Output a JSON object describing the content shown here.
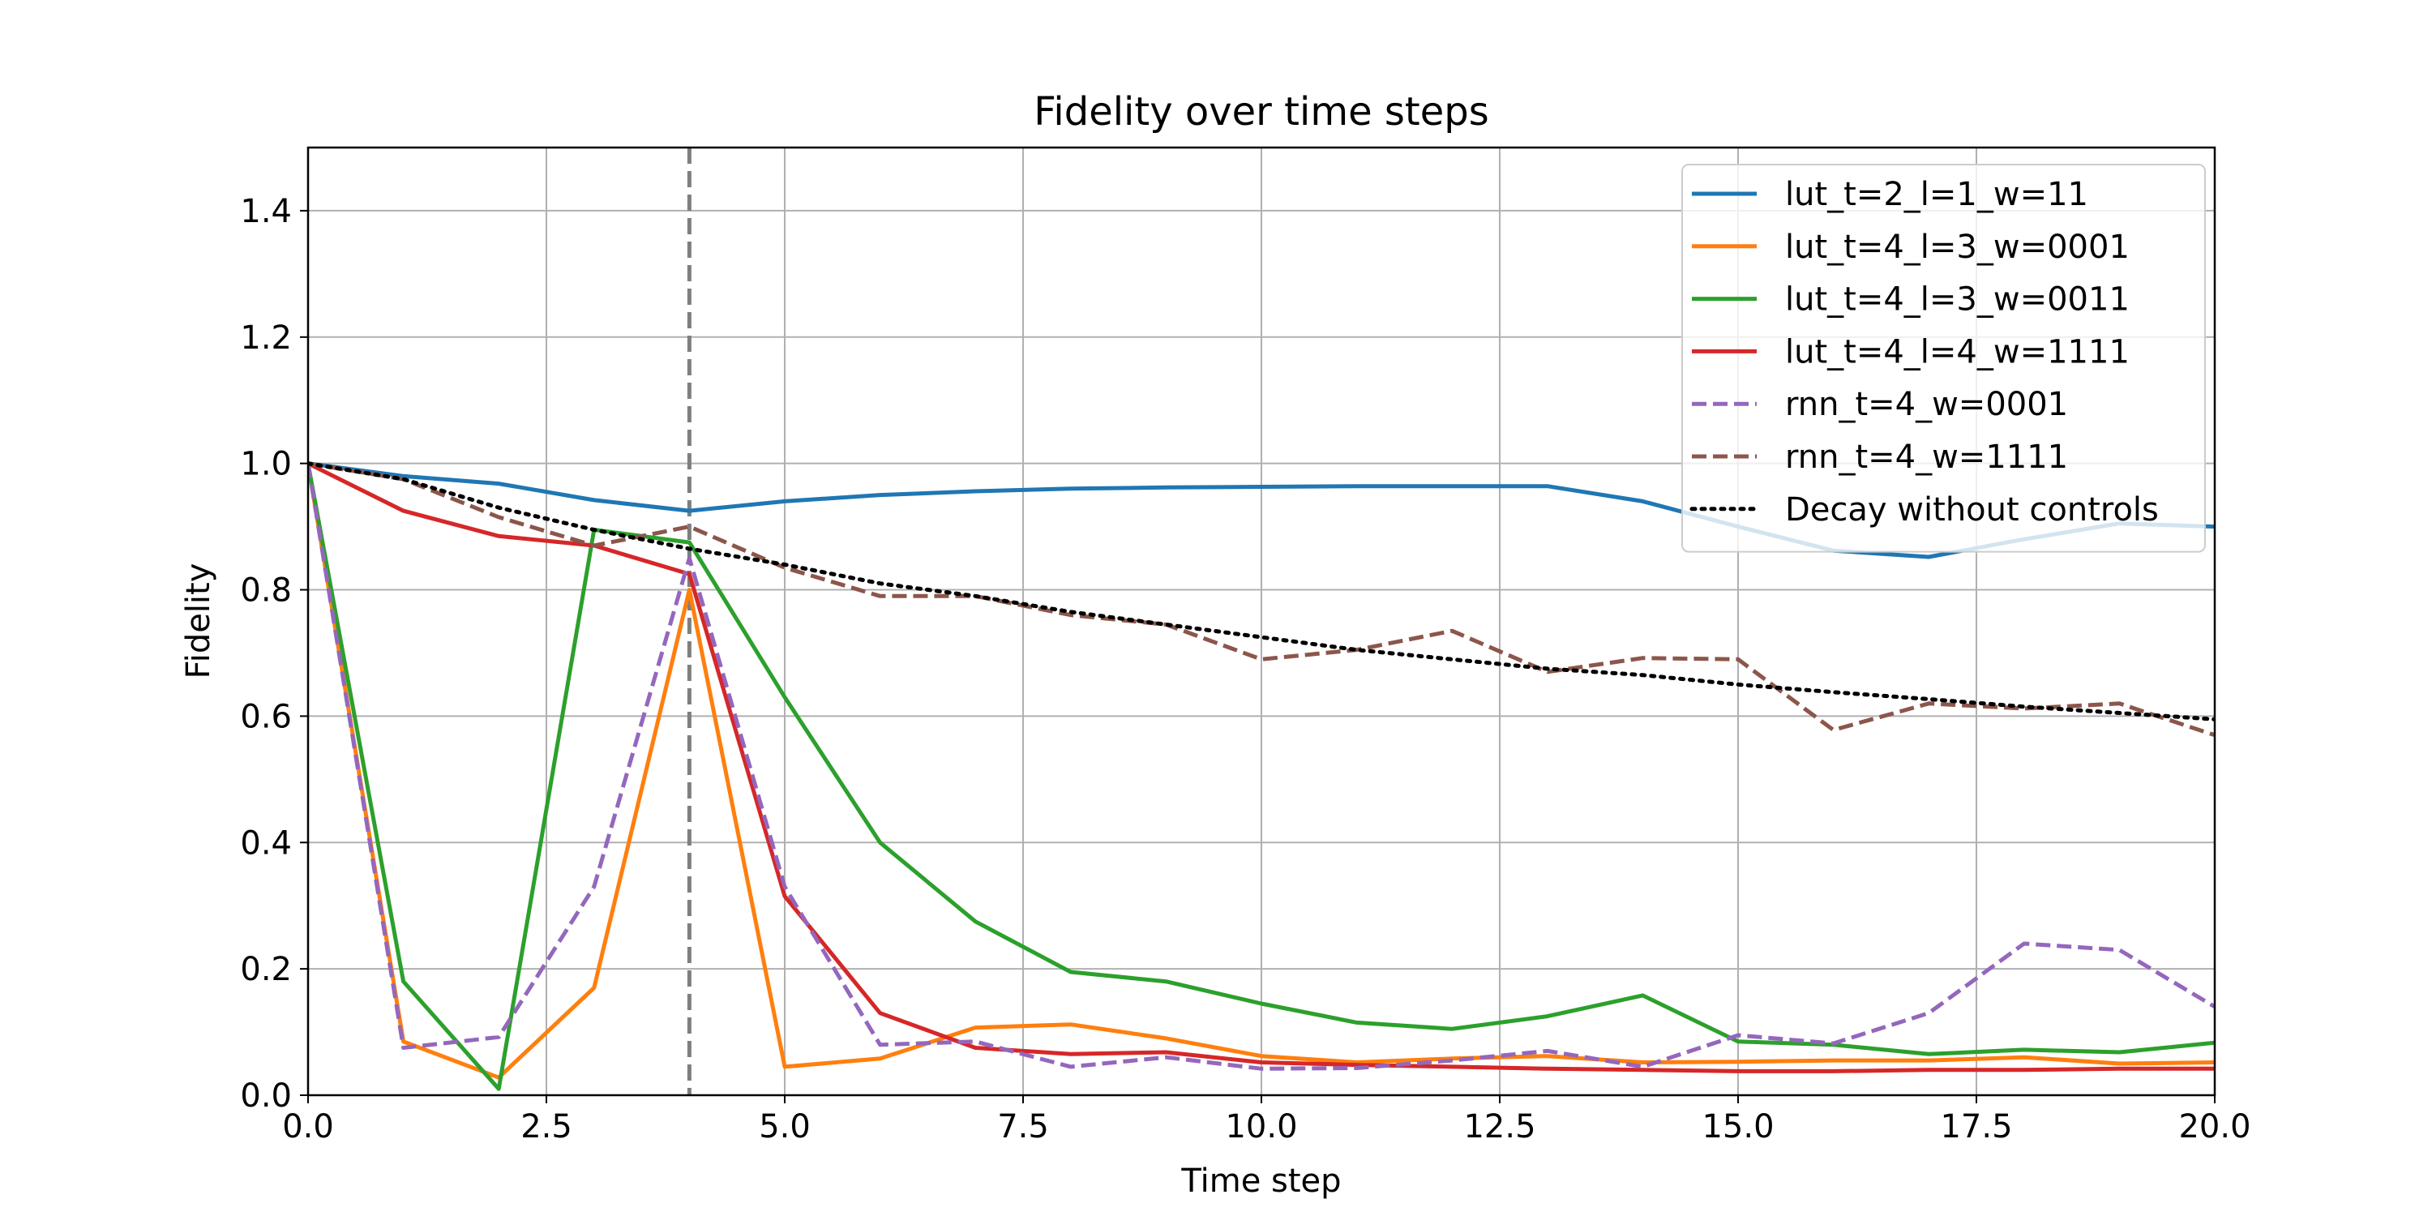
{
  "chart_data": {
    "type": "line",
    "title": "Fidelity over time steps",
    "xlabel": "Time step",
    "ylabel": "Fidelity",
    "xlim": [
      0,
      20
    ],
    "ylim": [
      0,
      1.5
    ],
    "xticks": [
      0,
      2.5,
      5,
      7.5,
      10,
      12.5,
      15,
      17.5,
      20
    ],
    "xtick_labels": [
      "0.0",
      "2.5",
      "5.0",
      "7.5",
      "10.0",
      "12.5",
      "15.0",
      "17.5",
      "20.0"
    ],
    "yticks": [
      0,
      0.2,
      0.4,
      0.6,
      0.8,
      1.0,
      1.2,
      1.4
    ],
    "ytick_labels": [
      "0.0",
      "0.2",
      "0.4",
      "0.6",
      "0.8",
      "1.0",
      "1.2",
      "1.4"
    ],
    "grid": true,
    "legend_position": "top-right",
    "vertical_marker": {
      "x": 4,
      "color": "#7f7f7f",
      "style": "dashed"
    },
    "x": [
      0,
      1,
      2,
      3,
      4,
      5,
      6,
      7,
      8,
      9,
      10,
      11,
      12,
      13,
      14,
      15,
      16,
      17,
      18,
      19,
      20
    ],
    "series": [
      {
        "name": "lut_t=2_l=1_w=11",
        "color": "#1f77b4",
        "style": "solid",
        "values": [
          1.0,
          0.98,
          0.968,
          0.942,
          0.925,
          0.94,
          0.95,
          0.956,
          0.96,
          0.962,
          0.963,
          0.964,
          0.964,
          0.964,
          0.94,
          0.9,
          0.862,
          0.852,
          0.88,
          0.905,
          0.9
        ]
      },
      {
        "name": "lut_t=4_l=3_w=0001",
        "color": "#ff7f0e",
        "style": "solid",
        "values": [
          1.0,
          0.085,
          0.028,
          0.17,
          0.8,
          0.045,
          0.058,
          0.107,
          0.112,
          0.09,
          0.062,
          0.052,
          0.058,
          0.062,
          0.052,
          0.053,
          0.055,
          0.055,
          0.06,
          0.05,
          0.052
        ]
      },
      {
        "name": "lut_t=4_l=3_w=0011",
        "color": "#2ca02c",
        "style": "solid",
        "values": [
          1.0,
          0.18,
          0.01,
          0.895,
          0.875,
          0.63,
          0.4,
          0.275,
          0.195,
          0.18,
          0.145,
          0.115,
          0.105,
          0.125,
          0.158,
          0.085,
          0.08,
          0.065,
          0.072,
          0.068,
          0.083
        ]
      },
      {
        "name": "lut_t=4_l=4_w=1111",
        "color": "#d62728",
        "style": "solid",
        "values": [
          1.0,
          0.925,
          0.885,
          0.87,
          0.825,
          0.315,
          0.13,
          0.075,
          0.065,
          0.068,
          0.052,
          0.048,
          0.045,
          0.042,
          0.04,
          0.038,
          0.038,
          0.04,
          0.04,
          0.042,
          0.042
        ]
      },
      {
        "name": "rnn_t=4_w=0001",
        "color": "#9467bd",
        "style": "dashed",
        "values": [
          1.0,
          0.075,
          0.092,
          0.33,
          0.85,
          0.33,
          0.08,
          0.085,
          0.045,
          0.06,
          0.042,
          0.043,
          0.055,
          0.07,
          0.045,
          0.095,
          0.082,
          0.13,
          0.24,
          0.23,
          0.14
        ]
      },
      {
        "name": "rnn_t=4_w=1111",
        "color": "#8c564b",
        "style": "dashed",
        "values": [
          1.0,
          0.975,
          0.915,
          0.87,
          0.9,
          0.835,
          0.79,
          0.79,
          0.76,
          0.745,
          0.69,
          0.705,
          0.735,
          0.67,
          0.692,
          0.69,
          0.578,
          0.62,
          0.612,
          0.62,
          0.57
        ]
      },
      {
        "name": "Decay without controls",
        "color": "#000000",
        "style": "dotted",
        "values": [
          1.0,
          0.975,
          0.93,
          0.895,
          0.865,
          0.84,
          0.81,
          0.79,
          0.765,
          0.745,
          0.725,
          0.705,
          0.69,
          0.675,
          0.665,
          0.65,
          0.638,
          0.627,
          0.615,
          0.605,
          0.595
        ]
      }
    ]
  }
}
